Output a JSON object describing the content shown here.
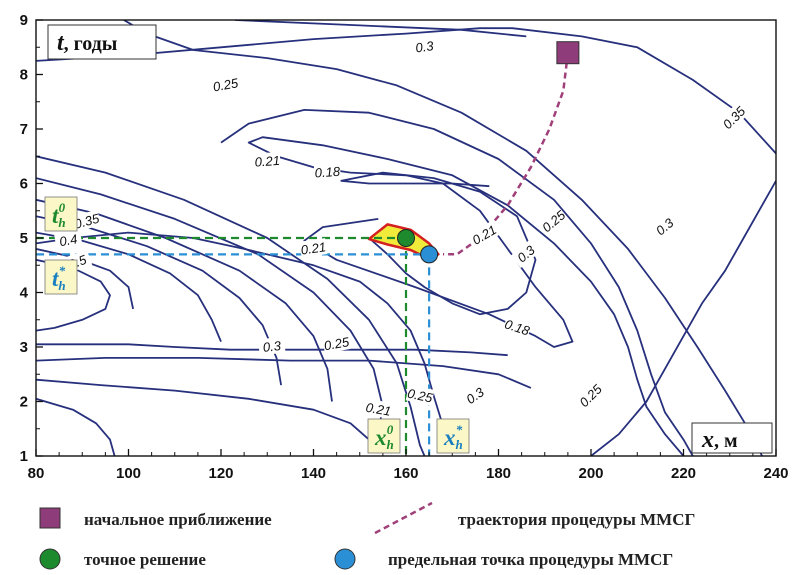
{
  "chart_data": {
    "type": "contour",
    "xlim": [
      80,
      240
    ],
    "ylim": [
      1,
      9
    ],
    "x_ticks": [
      "80",
      "100",
      "120",
      "140",
      "160",
      "180",
      "200",
      "220",
      "240"
    ],
    "y_ticks": [
      "1",
      "2",
      "3",
      "4",
      "5",
      "6",
      "7",
      "8",
      "9"
    ],
    "xlabel": {
      "var": "x",
      "unit": ", м"
    },
    "ylabel": {
      "var": "t",
      "unit": ", годы"
    },
    "grid": false,
    "contour_labels": [
      "0.3",
      "0.25",
      "0.21",
      "0.18",
      "0.35",
      "0.25",
      "0.3",
      "0.35",
      "0.4",
      "0.5",
      "0.21",
      "0.3",
      "0.25",
      "0.18",
      "0.21",
      "0.25",
      "0.3",
      "0.21",
      "0.25",
      "0.3"
    ],
    "initial_point": {
      "x": 195,
      "t": 8.4
    },
    "exact_solution": {
      "x": 160,
      "t": 5.0
    },
    "limit_point": {
      "x": 165,
      "t": 4.7
    },
    "trajectory": [
      [
        195,
        8.4
      ],
      [
        194,
        7.7
      ],
      [
        191,
        7.0
      ],
      [
        187,
        6.3
      ],
      [
        182,
        5.6
      ],
      [
        176,
        5.0
      ],
      [
        171,
        4.7
      ],
      [
        168,
        4.7
      ]
    ],
    "marked_x": [
      {
        "sym": "x",
        "sub": "h",
        "sup": "0",
        "color": "#1e8a2e"
      },
      {
        "sym": "x",
        "sub": "h",
        "sup": "*",
        "color": "#1a7fc0"
      }
    ],
    "marked_t": [
      {
        "sym": "t",
        "sub": "h",
        "sup": "0",
        "color": "#1e8a2e"
      },
      {
        "sym": "t",
        "sub": "h",
        "sup": "*",
        "color": "#1a7fc0"
      }
    ],
    "colors": {
      "contour": "#27307c",
      "initial": "#8e3c7a",
      "exact": "#1e8a2e",
      "limit": "#2b8fd6",
      "trajectory": "#a0407a",
      "region_fill": "#f0ea3a",
      "region_edge": "#d42020"
    },
    "legend": {
      "initial": "начальное приближение",
      "trajectory": "траектория процедуры ММСГ",
      "exact": "точное решение",
      "limit": "предельная точка процедуры ММСГ"
    }
  }
}
